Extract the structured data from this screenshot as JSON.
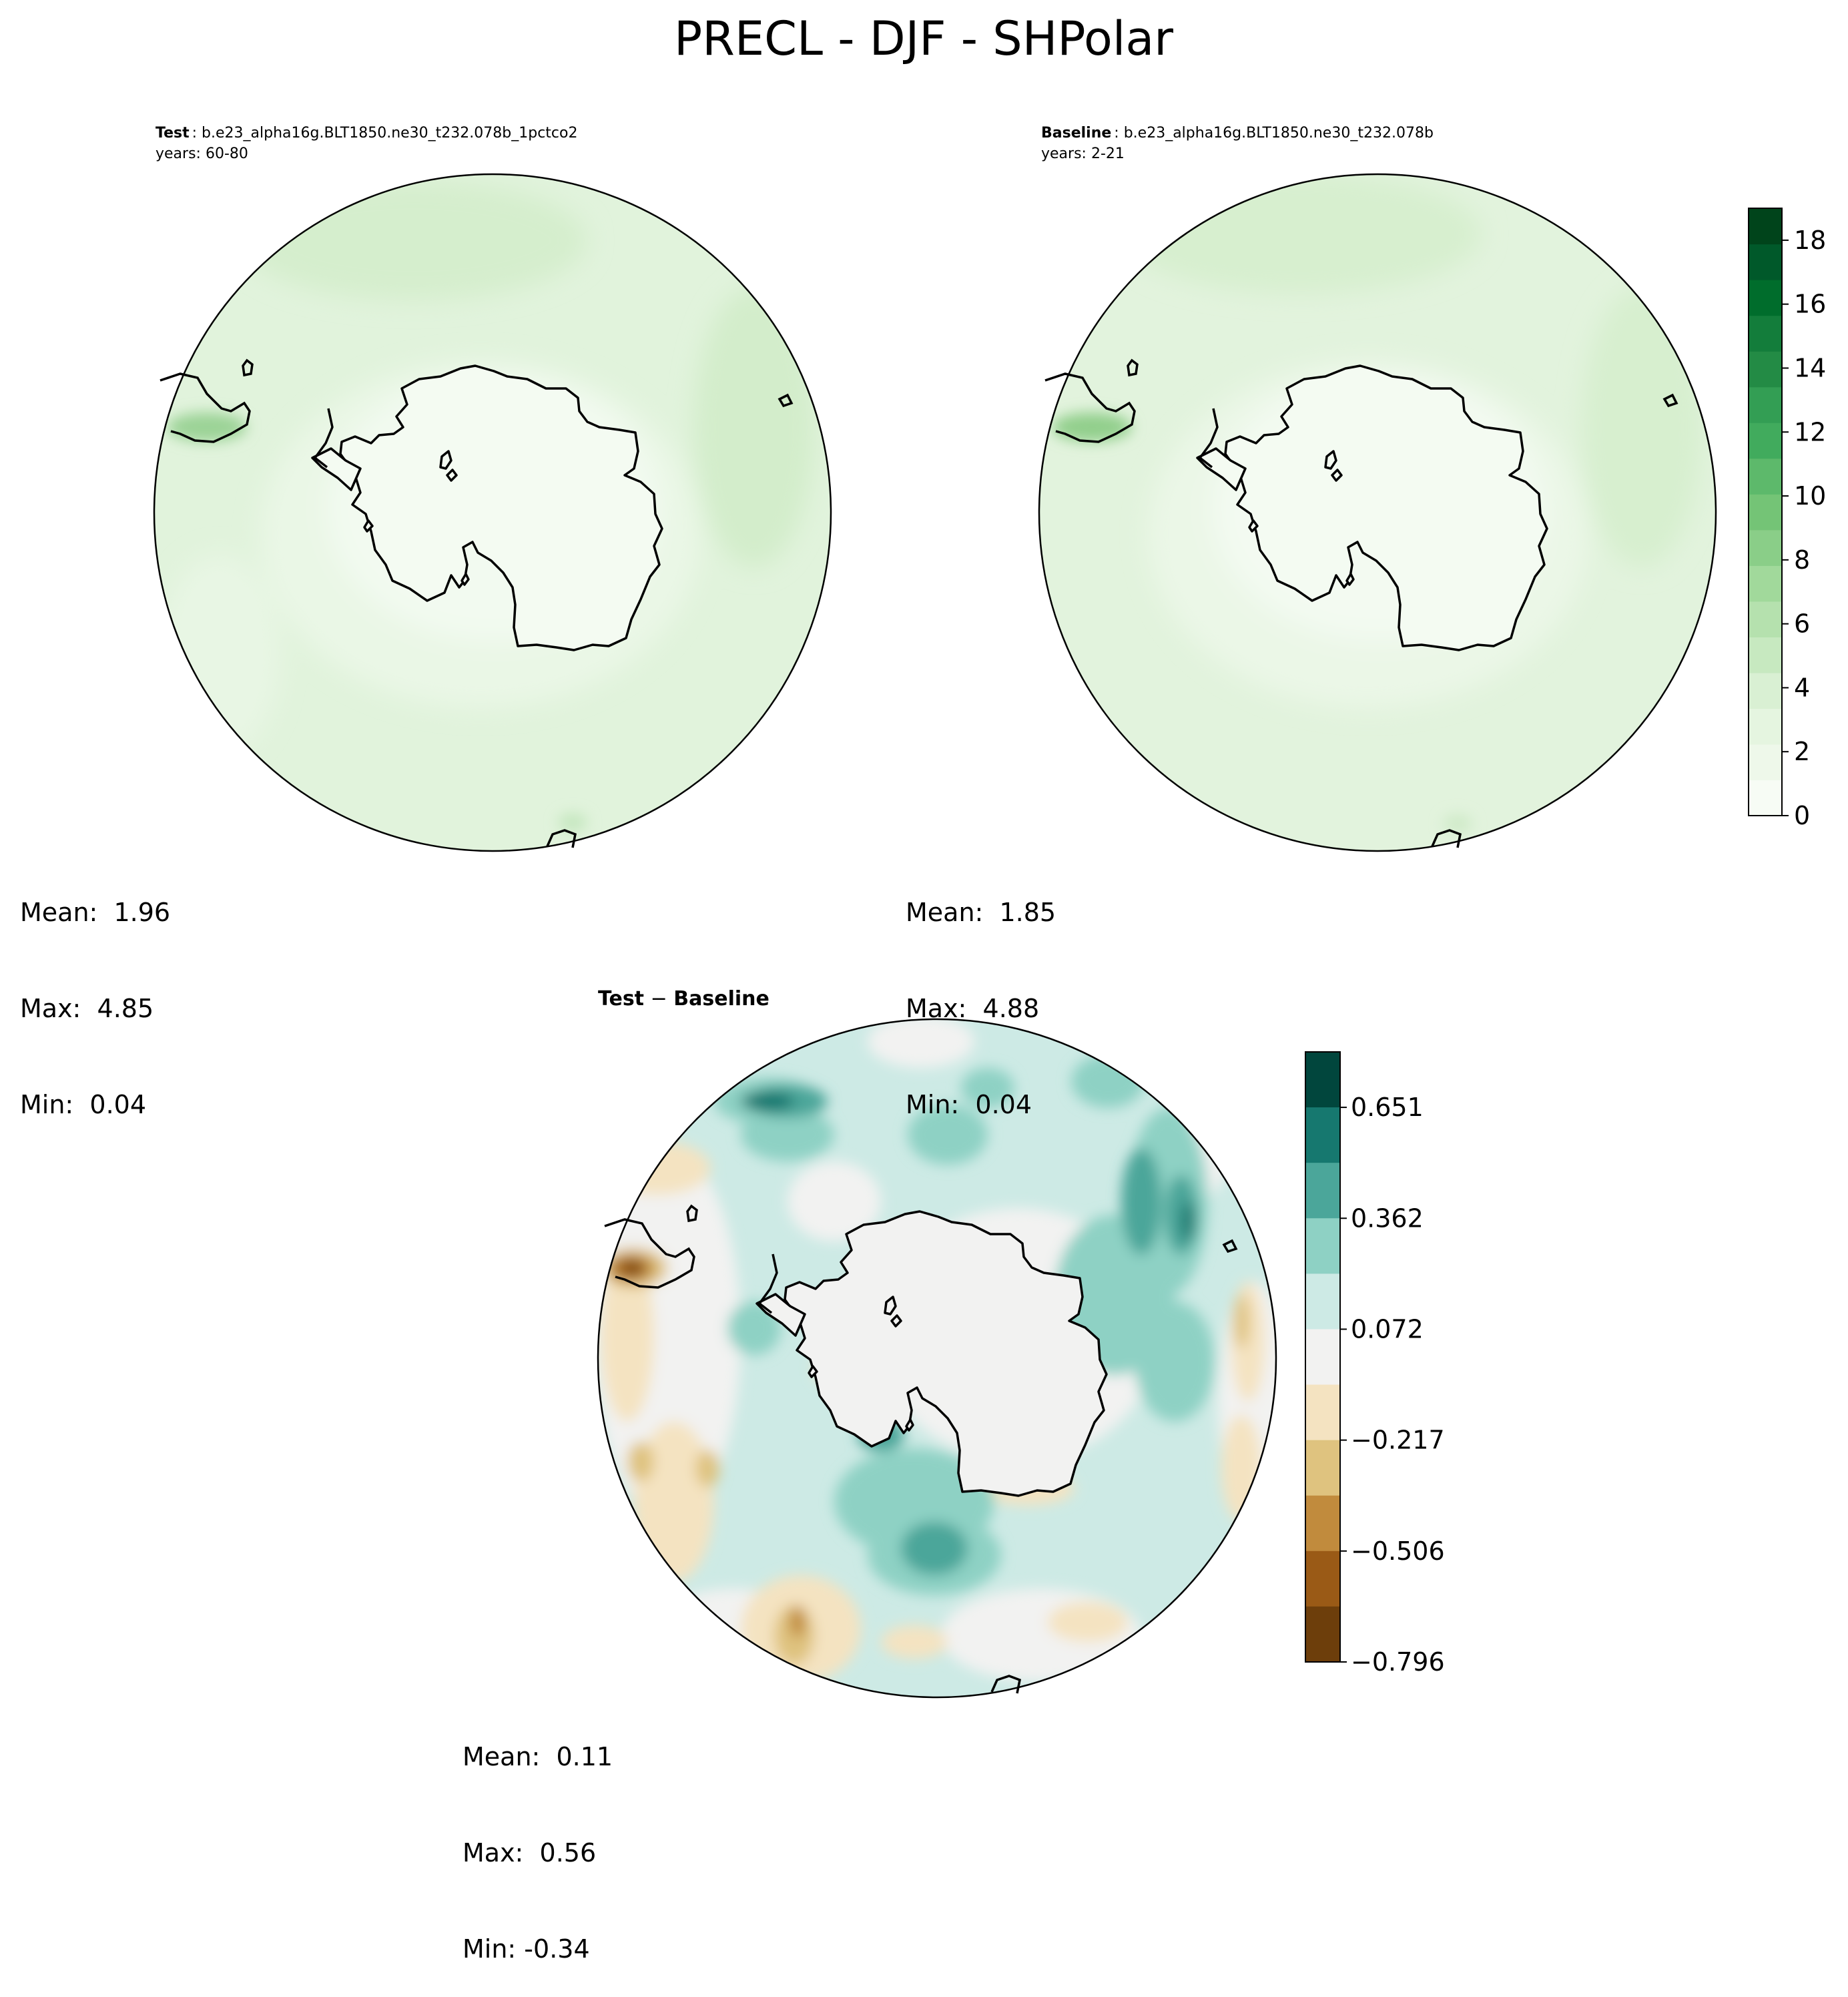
{
  "title": "PRECL - DJF - SHPolar",
  "panels": {
    "test": {
      "label": "Test",
      "case": "b.e23_alpha16g.BLT1850.ne30_t232.078b_1pctco2",
      "years": "years: 60-80",
      "stats": {
        "mean": "Mean:  1.96",
        "max": "Max:  4.85",
        "min": "Min:  0.04"
      }
    },
    "baseline": {
      "label": "Baseline",
      "case": "b.e23_alpha16g.BLT1850.ne30_t232.078b",
      "years": "years: 2-21",
      "stats": {
        "mean": "Mean:  1.85",
        "max": "Max:  4.88",
        "min": "Min:  0.04"
      }
    },
    "diff": {
      "label_a": "Test",
      "label_b": "Baseline",
      "stats": {
        "mean": "Mean:  0.11",
        "max": "Max:  0.56",
        "min": "Min: -0.34"
      }
    }
  },
  "colorbars": {
    "precip": {
      "range": [
        0,
        19
      ],
      "ticks": [
        "0",
        "2",
        "4",
        "6",
        "8",
        "10",
        "12",
        "14",
        "16",
        "18"
      ],
      "colors": [
        "#f7fcf5",
        "#eef8ea",
        "#e5f5e0",
        "#d9f0d3",
        "#c7e9c0",
        "#b5e1ae",
        "#a1d99b",
        "#8ace88",
        "#74c476",
        "#5db96b",
        "#41ab5d",
        "#339e54",
        "#238b45",
        "#137d3b",
        "#006d2c",
        "#00592a",
        "#00441b"
      ]
    },
    "diff": {
      "ticks": [
        "0.651",
        "0.362",
        "0.072",
        "−0.217",
        "−0.506",
        "−0.796"
      ],
      "colors": [
        "#01463d",
        "#16786f",
        "#4ba69a",
        "#8ed1c4",
        "#cdeae5",
        "#f2f2f1",
        "#f4e3c1",
        "#dfc37f",
        "#c18b3d",
        "#9a5a16",
        "#6d3e0b"
      ]
    }
  }
}
